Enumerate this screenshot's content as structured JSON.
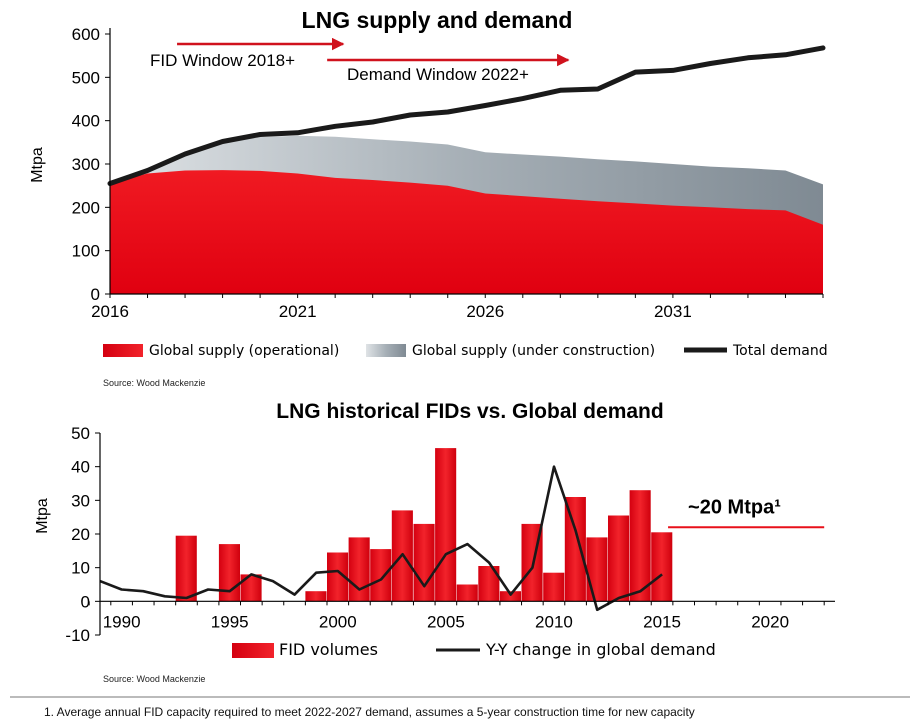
{
  "chart_data": [
    {
      "type": "area",
      "title": "LNG supply and demand",
      "ylabel": "Mtpa",
      "xlabel": "",
      "xlim": [
        2016,
        2035
      ],
      "ylim": [
        0,
        600
      ],
      "x_ticks": [
        "2016",
        "2021",
        "2026",
        "2031"
      ],
      "y_ticks": [
        "0",
        "100",
        "200",
        "300",
        "400",
        "500",
        "600"
      ],
      "x": [
        2016,
        2017,
        2018,
        2019,
        2020,
        2021,
        2022,
        2023,
        2024,
        2025,
        2026,
        2027,
        2028,
        2029,
        2030,
        2031,
        2032,
        2033,
        2034,
        2035
      ],
      "series": [
        {
          "name": "Global supply (operational)",
          "kind": "area",
          "color": "#e8101a",
          "values": [
            255,
            278,
            285,
            286,
            284,
            278,
            268,
            263,
            257,
            250,
            232,
            226,
            220,
            214,
            209,
            204,
            200,
            196,
            193,
            160
          ]
        },
        {
          "name": "Global supply (under construction)",
          "kind": "area",
          "color": "#9aa4ad",
          "values": [
            257,
            290,
            325,
            350,
            362,
            365,
            363,
            357,
            352,
            345,
            327,
            322,
            317,
            311,
            306,
            300,
            294,
            290,
            285,
            253
          ]
        },
        {
          "name": "Total demand",
          "kind": "line",
          "color": "#1a1a1a",
          "values": [
            255,
            285,
            323,
            352,
            368,
            372,
            387,
            397,
            413,
            420,
            435,
            451,
            470,
            473,
            512,
            516,
            532,
            545,
            552,
            568
          ]
        }
      ],
      "annotations": [
        {
          "text": "FID Window 2018+",
          "from": 2018,
          "to": 2022
        },
        {
          "text": "Demand Window 2022+",
          "from": 2022,
          "to": 2028
        }
      ],
      "legend": "bottom",
      "grid": false
    },
    {
      "type": "bar",
      "title": "LNG historical FIDs vs. Global demand",
      "ylabel": "Mtpa",
      "xlabel": "",
      "xlim": [
        1989,
        2023
      ],
      "ylim": [
        -10,
        50
      ],
      "x_ticks": [
        "1990",
        "1995",
        "2000",
        "2005",
        "2010",
        "2015",
        "2020"
      ],
      "y_ticks": [
        "-10",
        "0",
        "10",
        "20",
        "30",
        "40",
        "50"
      ],
      "bar_series": {
        "name": "FID volumes",
        "color": "#e8101a",
        "x": [
          1993,
          1995,
          1996,
          1999,
          2000,
          2001,
          2002,
          2003,
          2004,
          2005,
          2006,
          2007,
          2008,
          2009,
          2010,
          2011,
          2012,
          2013,
          2014,
          2015
        ],
        "values": [
          19.5,
          17,
          8,
          3,
          14.5,
          19,
          15.5,
          27,
          23,
          45.5,
          5,
          10.5,
          3,
          23,
          8.5,
          31,
          19,
          25.5,
          33,
          20.5
        ]
      },
      "line_series": {
        "name": "Y-Y change in global demand",
        "color": "#1a1a1a",
        "x": [
          1989,
          1990,
          1991,
          1992,
          1993,
          1994,
          1995,
          1996,
          1997,
          1998,
          1999,
          2000,
          2001,
          2002,
          2003,
          2004,
          2005,
          2006,
          2007,
          2008,
          2009,
          2010,
          2011,
          2012,
          2013,
          2014,
          2015
        ],
        "values": [
          6,
          3.5,
          3,
          1.5,
          1,
          3.5,
          3,
          8,
          6,
          2,
          8.5,
          9,
          3.5,
          6.5,
          14,
          4.5,
          14,
          17,
          11.5,
          2,
          10,
          40,
          21,
          -2.5,
          1,
          3,
          8
        ]
      },
      "target": {
        "text": "~20 Mtpa¹",
        "value": 22,
        "from": 2015,
        "to": 2022.5,
        "color": "#e8101a"
      },
      "legend": "bottom",
      "grid": false
    }
  ],
  "source_1": "Source: Wood Mackenzie",
  "source_2": "Source: Wood Mackenzie",
  "footnote": "1. Average annual FID capacity required to meet 2022-2027 demand, assumes a 5-year construction time for new capacity"
}
